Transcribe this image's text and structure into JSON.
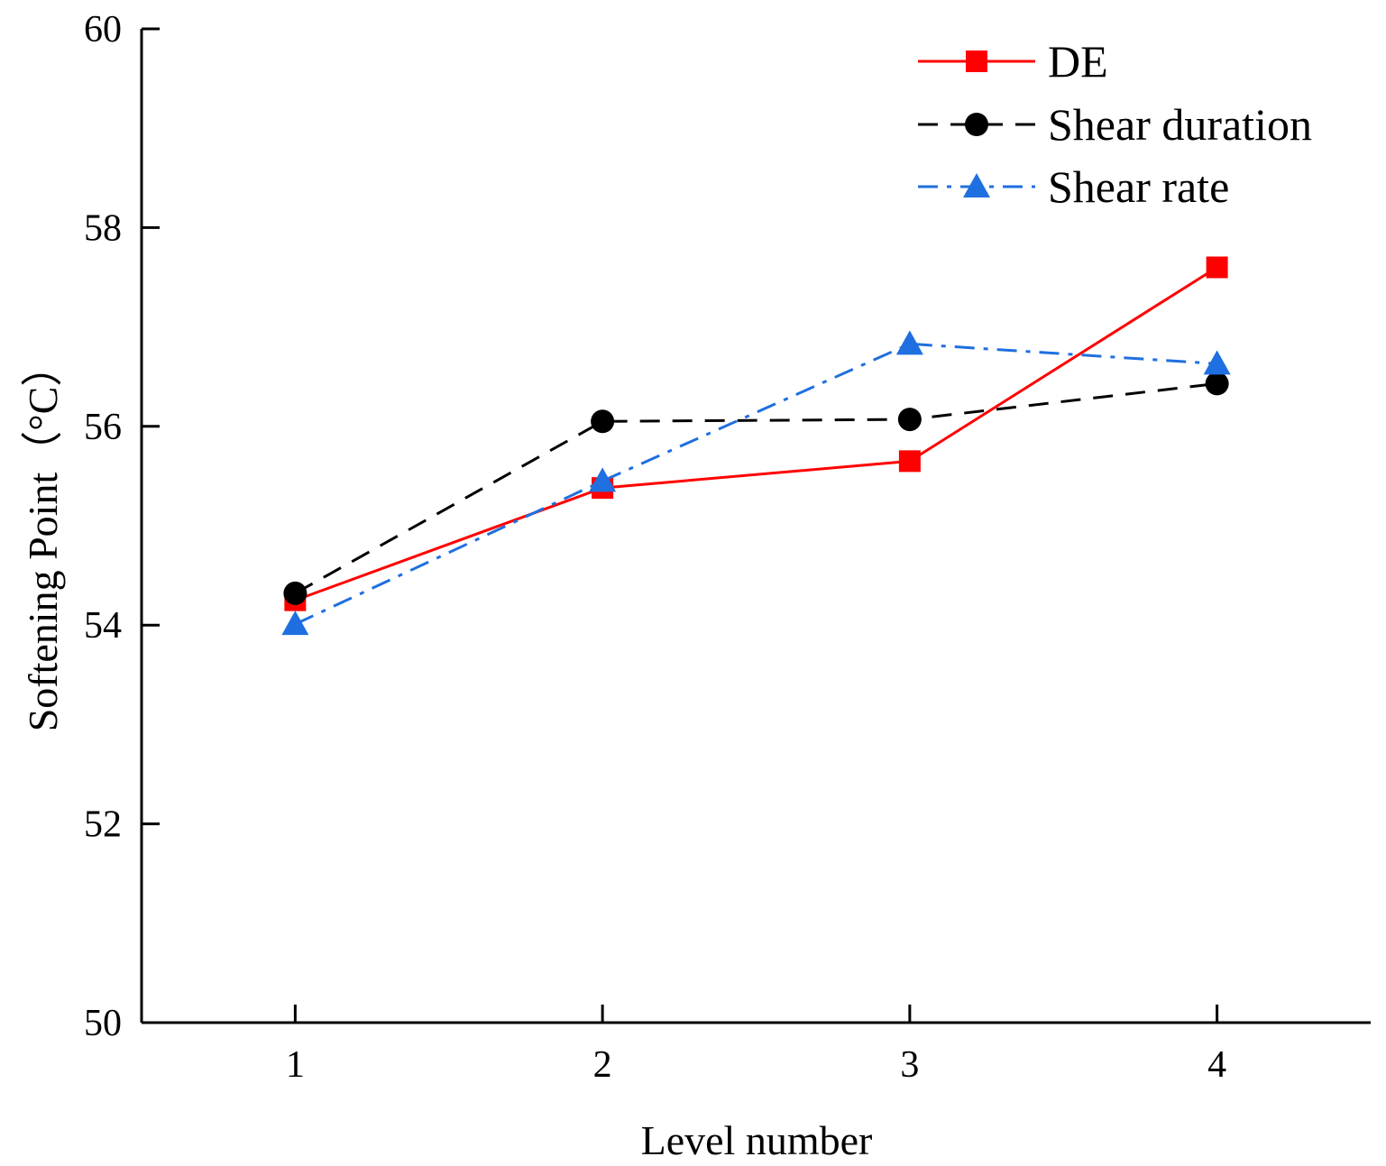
{
  "chart_data": {
    "type": "line",
    "title": "",
    "xlabel": "Level number",
    "ylabel": "Softening Point（°C）",
    "x": [
      1,
      2,
      3,
      4
    ],
    "x_ticks": [
      "1",
      "2",
      "3",
      "4"
    ],
    "xlim": [
      0.5,
      4.5
    ],
    "ylim": [
      50,
      60
    ],
    "y_ticks": [
      "50",
      "52",
      "54",
      "56",
      "58",
      "60"
    ],
    "grid": false,
    "legend_position": "top-right",
    "series": [
      {
        "name": "DE",
        "values": [
          54.25,
          55.38,
          55.65,
          57.6
        ],
        "color": "#ff0000",
        "marker": "square",
        "line": "solid"
      },
      {
        "name": "Shear duration",
        "values": [
          54.32,
          56.05,
          56.07,
          56.43
        ],
        "color": "#000000",
        "marker": "circle",
        "line": "dashed"
      },
      {
        "name": "Shear rate",
        "values": [
          54.01,
          55.45,
          56.83,
          56.63
        ],
        "color": "#1f6fe0",
        "marker": "triangle",
        "line": "dashdot"
      }
    ]
  }
}
